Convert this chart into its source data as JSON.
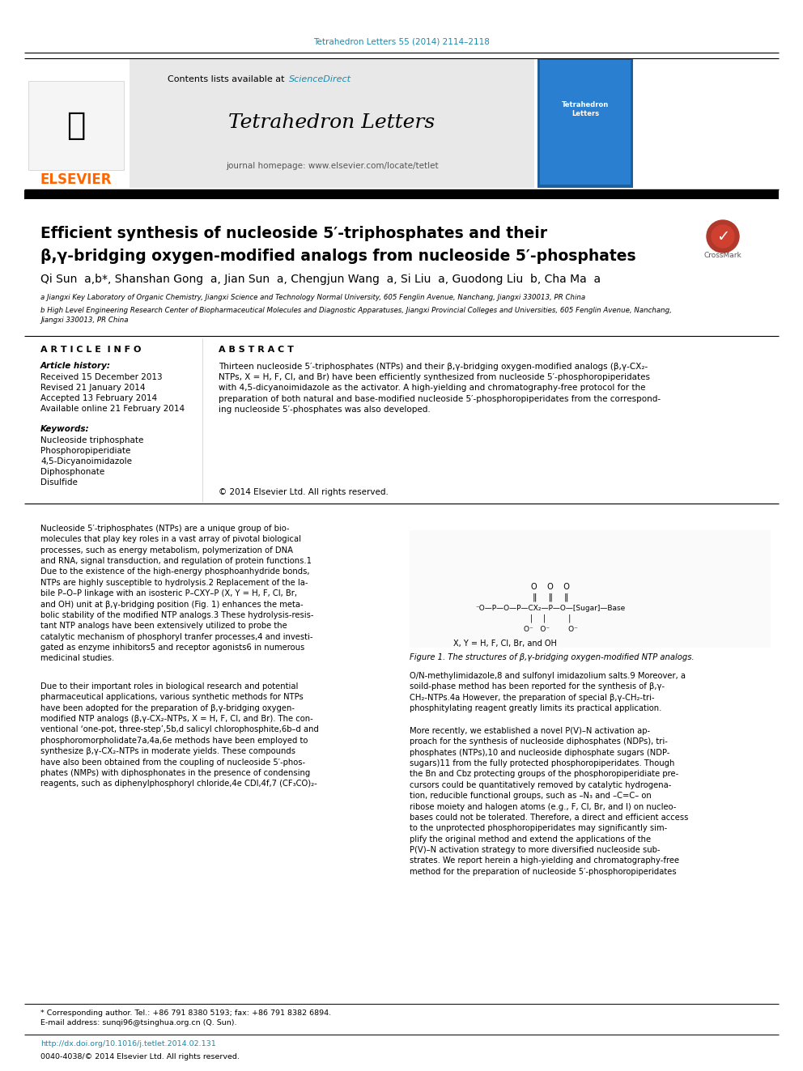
{
  "page_bg": "#ffffff",
  "top_citation": "Tetrahedron Letters 55 (2014) 2114–2118",
  "top_citation_color": "#1a8aad",
  "header_bg": "#e8e8e8",
  "header_sciencedirect_color": "#1a8aad",
  "journal_title": "Tetrahedron Letters",
  "journal_homepage": "journal homepage: www.elsevier.com/locate/tetlet",
  "elsevier_color": "#ff6600",
  "article_title_line1": "Efficient synthesis of nucleoside 5′-triphosphates and their",
  "article_title_line2": "β,γ-bridging oxygen-modified analogs from nucleoside 5′-phosphates",
  "authors": "Qi Sun  a,b*, Shanshan Gong  a, Jian Sun  a, Chengjun Wang  a, Si Liu  a, Guodong Liu  b, Cha Ma  a",
  "affil_a": "a Jiangxi Key Laboratory of Organic Chemistry, Jiangxi Science and Technology Normal University, 605 Fenglin Avenue, Nanchang, Jiangxi 330013, PR China",
  "affil_b": "b High Level Engineering Research Center of Biopharmaceutical Molecules and Diagnostic Apparatuses, Jiangxi Provincial Colleges and Universities, 605 Fenglin Avenue, Nanchang,",
  "affil_b2": "Jiangxi 330013, PR China",
  "article_info_title": "A R T I C L E  I N F O",
  "abstract_title": "A B S T R A C T",
  "article_history_label": "Article history:",
  "received": "Received 15 December 2013",
  "revised": "Revised 21 January 2014",
  "accepted": "Accepted 13 February 2014",
  "available": "Available online 21 February 2014",
  "keywords_label": "Keywords:",
  "kw1": "Nucleoside triphosphate",
  "kw2": "Phosphoropiperidiate",
  "kw3": "4,5-Dicyanoimidazole",
  "kw4": "Diphosphonate",
  "kw5": "Disulfide",
  "abstract_text": "Thirteen nucleoside 5′-triphosphates (NTPs) and their β,γ-bridging oxygen-modified analogs (β,γ-CX₂-\nNTPs, X = H, F, Cl, and Br) have been efficiently synthesized from nucleoside 5′-phosphoropiperidates\nwith 4,5-dicyanoimidazole as the activator. A high-yielding and chromatography-free protocol for the\npreparation of both natural and base-modified nucleoside 5′-phosphoropiperidates from the correspond-\ning nucleoside 5′-phosphates was also developed.",
  "copyright": "© 2014 Elsevier Ltd. All rights reserved.",
  "body_col1_para1": "Nucleoside 5′-triphosphates (NTPs) are a unique group of bio-\nmolecules that play key roles in a vast array of pivotal biological\nprocesses, such as energy metabolism, polymerization of DNA\nand RNA, signal transduction, and regulation of protein functions.1\nDue to the existence of the high-energy phosphoanhydride bonds,\nNTPs are highly susceptible to hydrolysis.2 Replacement of the la-\nbile P–O–P linkage with an isosteric P–CXY–P (X, Y = H, F, Cl, Br,\nand OH) unit at β,γ-bridging position (Fig. 1) enhances the meta-\nbolic stability of the modified NTP analogs.3 These hydrolysis-resis-\ntant NTP analogs have been extensively utilized to probe the\ncatalytic mechanism of phosphoryl tranfer processes,4 and investi-\ngated as enzyme inhibitors5 and receptor agonists6 in numerous\nmedicinal studies.",
  "body_col1_para2": "Due to their important roles in biological research and potential\npharmaceutical applications, various synthetic methods for NTPs\nhave been adopted for the preparation of β,γ-bridging oxygen-\nmodified NTP analogs (β,γ-CX₂-NTPs, X = H, F, Cl, and Br). The con-\nventional ‘one-pot, three-step’,5b,d salicyl chlorophosphite,6b–d and\nphosphoromorpholidate7a,4a,6e methods have been employed to\nsynthesize β,γ-CX₂-NTPs in moderate yields. These compounds\nhave also been obtained from the coupling of nucleoside 5′-phos-\nphates (NMPs) with diphosphonates in the presence of condensing\nreagents, such as diphenylphosphoryl chloride,4e CDI,4f,7 (CF₃CO)₂-",
  "body_col2_para1": "O/N-methylimidazole,8 and sulfonyl imidazolium salts.9 Moreover, a\nsoild-phase method has been reported for the synthesis of β,γ-\nCH₂-NTPs.4a However, the preparation of special β,γ-CH₂-tri-\nphosphitylating reagent greatly limits its practical application.",
  "body_col2_para2": "More recently, we established a novel P(V)–N activation ap-\nproach for the synthesis of nucleoside diphosphates (NDPs), tri-\nphosphates (NTPs),10 and nucleoside diphosphate sugars (NDP-\nsugars)11 from the fully protected phosphoropiperidates. Though\nthe Bn and Cbz protecting groups of the phosphoropiperidiate pre-\ncursors could be quantitatively removed by catalytic hydrogena-\ntion, reducible functional groups, such as –N₃ and –C=C– on\nribose moiety and halogen atoms (e.g., F, Cl, Br, and I) on nucleo-\nbases could not be tolerated. Therefore, a direct and efficient access\nto the unprotected phosphoropiperidates may significantly sim-\nplify the original method and extend the applications of the\nP(V)–N activation strategy to more diversified nucleoside sub-\nstrates. We report herein a high-yielding and chromatography-free\nmethod for the preparation of nucleoside 5′-phosphoropiperidates",
  "figure_caption": "Figure 1. The structures of β,γ-bridging oxygen-modified NTP analogs.",
  "figure_xy": "X, Y = H, F, Cl, Br, and OH",
  "footer_note": "* Corresponding author. Tel.: +86 791 8380 5193; fax: +86 791 8382 6894.",
  "footer_email": "E-mail address: sunqi96@tsinghua.org.cn (Q. Sun).",
  "footer_doi": "http://dx.doi.org/10.1016/j.tetlet.2014.02.131",
  "footer_issn": "0040-4038/© 2014 Elsevier Ltd. All rights reserved."
}
